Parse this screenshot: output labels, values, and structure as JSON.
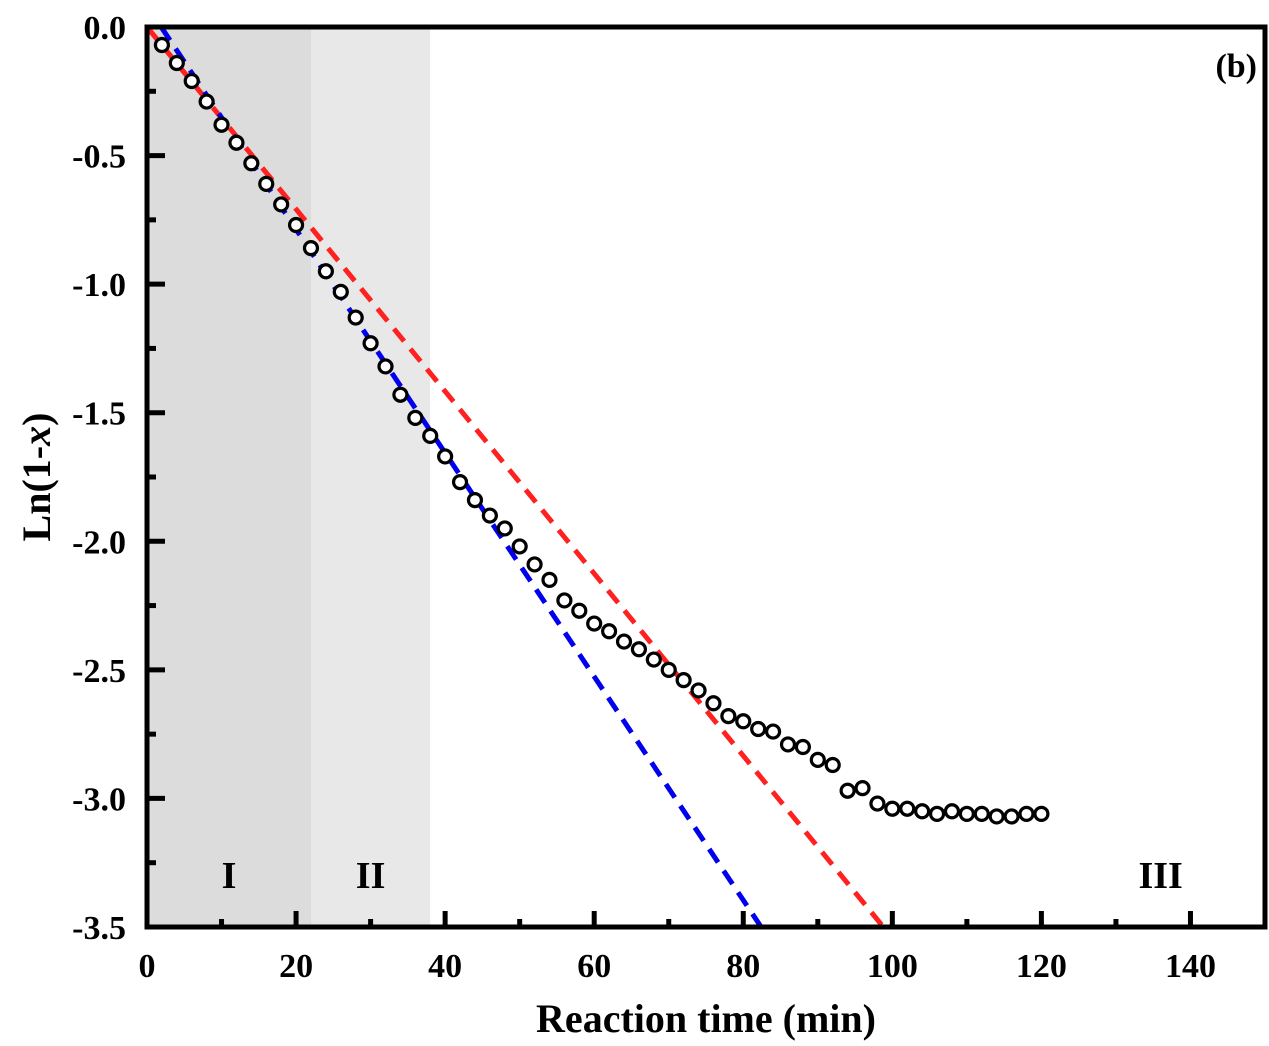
{
  "chart_data": {
    "type": "scatter",
    "panel_label": "(b)",
    "xlabel": "Reaction time (min)",
    "ylabel_prefix": "Ln(1-",
    "ylabel_var": "x",
    "ylabel_suffix": ")",
    "xlim": [
      0,
      150
    ],
    "ylim": [
      -3.5,
      0.0
    ],
    "x_ticks": [
      0,
      20,
      40,
      60,
      80,
      100,
      120,
      140
    ],
    "x_tick_labels": [
      "0",
      "20",
      "40",
      "60",
      "80",
      "100",
      "120",
      "140"
    ],
    "y_ticks": [
      0.0,
      -0.5,
      -1.0,
      -1.5,
      -2.0,
      -2.5,
      -3.0,
      -3.5
    ],
    "y_tick_labels": [
      "0.0",
      "-0.5",
      "-1.0",
      "-1.5",
      "-2.0",
      "-2.5",
      "-3.0",
      "-3.5"
    ],
    "grid": false,
    "regions": [
      {
        "label": "I",
        "x_start": 0,
        "x_end": 22,
        "color": "#dcdcdc"
      },
      {
        "label": "II",
        "x_start": 22,
        "x_end": 38,
        "color": "#e8e8e8"
      },
      {
        "label": "III",
        "x_start": 38,
        "x_end": 150,
        "color": "#ffffff"
      }
    ],
    "series": [
      {
        "name": "experimental",
        "marker": "open-circle",
        "color": "#000000",
        "x": [
          2,
          4,
          6,
          8,
          10,
          12,
          14,
          16,
          18,
          20,
          22,
          24,
          26,
          28,
          30,
          32,
          34,
          36,
          38,
          40,
          42,
          44,
          46,
          48,
          50,
          52,
          54,
          56,
          58,
          60,
          62,
          64,
          66,
          68,
          70,
          72,
          74,
          76,
          78,
          80,
          82,
          84,
          86,
          88,
          90,
          92,
          94,
          96,
          98,
          100,
          102,
          104,
          106,
          108,
          110,
          112,
          114,
          116,
          118,
          120
        ],
        "y": [
          -0.07,
          -0.14,
          -0.21,
          -0.29,
          -0.38,
          -0.45,
          -0.53,
          -0.61,
          -0.69,
          -0.77,
          -0.86,
          -0.95,
          -1.03,
          -1.13,
          -1.23,
          -1.32,
          -1.43,
          -1.52,
          -1.59,
          -1.67,
          -1.77,
          -1.84,
          -1.9,
          -1.95,
          -2.02,
          -2.09,
          -2.15,
          -2.23,
          -2.27,
          -2.32,
          -2.35,
          -2.39,
          -2.42,
          -2.46,
          -2.5,
          -2.54,
          -2.58,
          -2.63,
          -2.68,
          -2.7,
          -2.73,
          -2.74,
          -2.79,
          -2.8,
          -2.85,
          -2.87,
          -2.97,
          -2.96,
          -3.02,
          -3.04,
          -3.04,
          -3.05,
          -3.06,
          -3.05,
          -3.06,
          -3.06,
          -3.07,
          -3.07,
          -3.06,
          -3.06
        ]
      },
      {
        "name": "fit-red",
        "line": "dashed",
        "color": "#ff2020",
        "x": [
          0,
          98.8
        ],
        "y": [
          0.0,
          -3.5
        ]
      },
      {
        "name": "fit-blue",
        "line": "dashed",
        "color": "#0000ee",
        "x": [
          1.9,
          82.4
        ],
        "y": [
          0.0,
          -3.5
        ]
      }
    ]
  }
}
